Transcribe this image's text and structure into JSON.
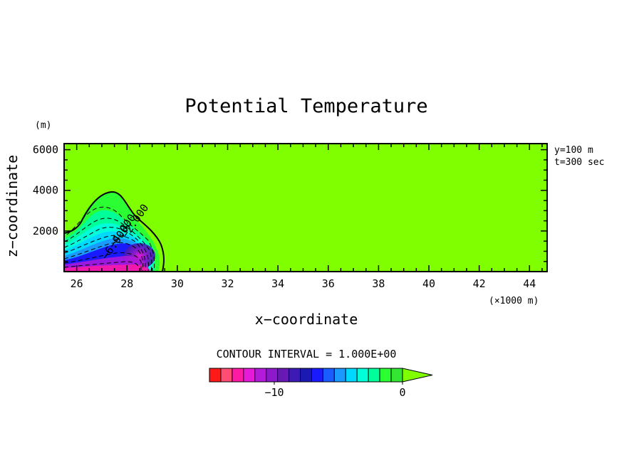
{
  "chart_data": {
    "type": "heatmap",
    "title": "Potential Temperature",
    "xlabel": "x−coordinate",
    "ylabel": "z−coordinate",
    "x_unit": "(×1000 m)",
    "y_unit": "(m)",
    "x_ticks": [
      26,
      28,
      30,
      32,
      34,
      36,
      38,
      40,
      42,
      44
    ],
    "y_ticks": [
      2000,
      4000,
      6000
    ],
    "xlim": [
      25.5,
      44.7
    ],
    "ylim": [
      0,
      6300
    ],
    "annotations": [
      "y=100 m",
      "t=300 sec"
    ],
    "contour_interval_label": "CONTOUR INTERVAL = 1.000E+00",
    "contour_labels": [
      "−6.000",
      "−4.000",
      "−2.000"
    ],
    "colorbar": {
      "tick_labels": [
        "−10",
        "0"
      ],
      "tick_values": [
        -10,
        0
      ],
      "levels": [
        -14,
        -13,
        -12,
        -11,
        -10,
        -9,
        -8,
        -7,
        -6,
        -5,
        -4,
        -3,
        -2,
        -1,
        0
      ],
      "colors": [
        "#ff1a1a",
        "#ff4d73",
        "#ff1aa6",
        "#e61ad9",
        "#b31ad9",
        "#8c1acc",
        "#661ab3",
        "#3d1ab3",
        "#1a1ab3",
        "#1a1aff",
        "#1a5cff",
        "#1a99ff",
        "#00d9ff",
        "#00ffd9",
        "#00ff99",
        "#2bff33",
        "#33e633"
      ],
      "overflow_color": "#7fff00"
    },
    "background_color": "#7fff00",
    "cold_pool": {
      "x_range": [
        25.5,
        29.8
      ],
      "max_height": 4000,
      "min_value": -14
    }
  }
}
